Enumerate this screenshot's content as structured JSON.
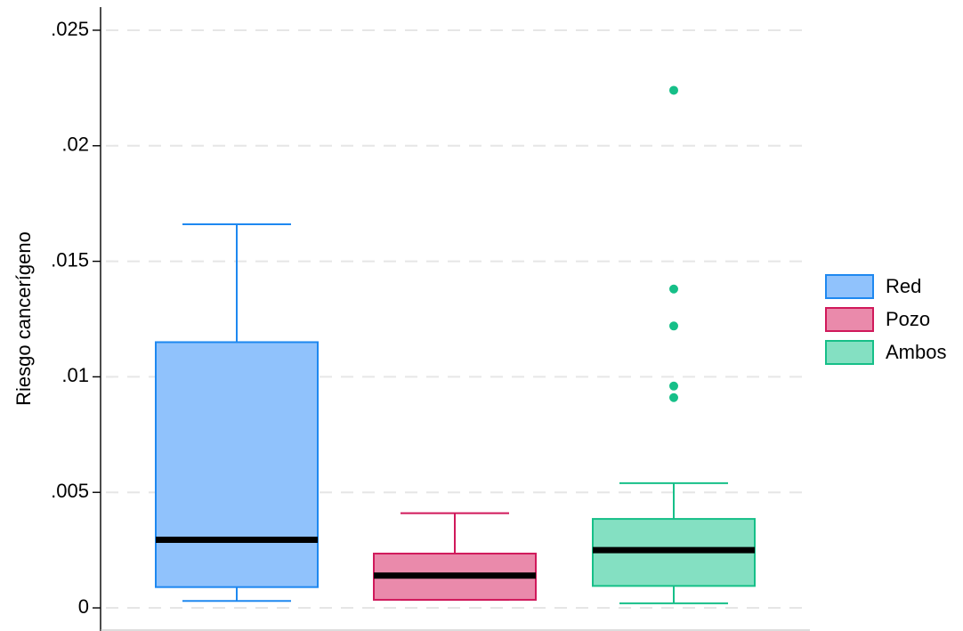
{
  "chart_data": {
    "type": "box",
    "ylabel": "Riesgo cancerígeno",
    "xlabel": "",
    "ylim": [
      -0.001,
      0.026
    ],
    "yticks": [
      {
        "value": 0,
        "label": "0"
      },
      {
        "value": 0.005,
        "label": ".005"
      },
      {
        "value": 0.01,
        "label": ".01"
      },
      {
        "value": 0.015,
        "label": ".015"
      },
      {
        "value": 0.02,
        "label": ".02"
      },
      {
        "value": 0.025,
        "label": ".025"
      }
    ],
    "grid": "horizontal-dashed",
    "legend_position": "right",
    "series": [
      {
        "name": "Red",
        "stroke": "#1e88f0",
        "fill": "#90c2fc",
        "whisker_low": 0.0003,
        "q1": 0.0009,
        "median": 0.00295,
        "q3": 0.0115,
        "whisker_high": 0.0166,
        "outliers": []
      },
      {
        "name": "Pozo",
        "stroke": "#d0195b",
        "fill": "#ea8aab",
        "whisker_low": 0.00035,
        "q1": 0.00035,
        "median": 0.0014,
        "q3": 0.00235,
        "whisker_high": 0.0041,
        "outliers": []
      },
      {
        "name": "Ambos",
        "stroke": "#16bf88",
        "fill": "#84e0c2",
        "whisker_low": 0.0002,
        "q1": 0.00095,
        "median": 0.0025,
        "q3": 0.00385,
        "whisker_high": 0.0054,
        "outliers": [
          0.0091,
          0.0096,
          0.0122,
          0.0138,
          0.0224
        ]
      }
    ]
  }
}
